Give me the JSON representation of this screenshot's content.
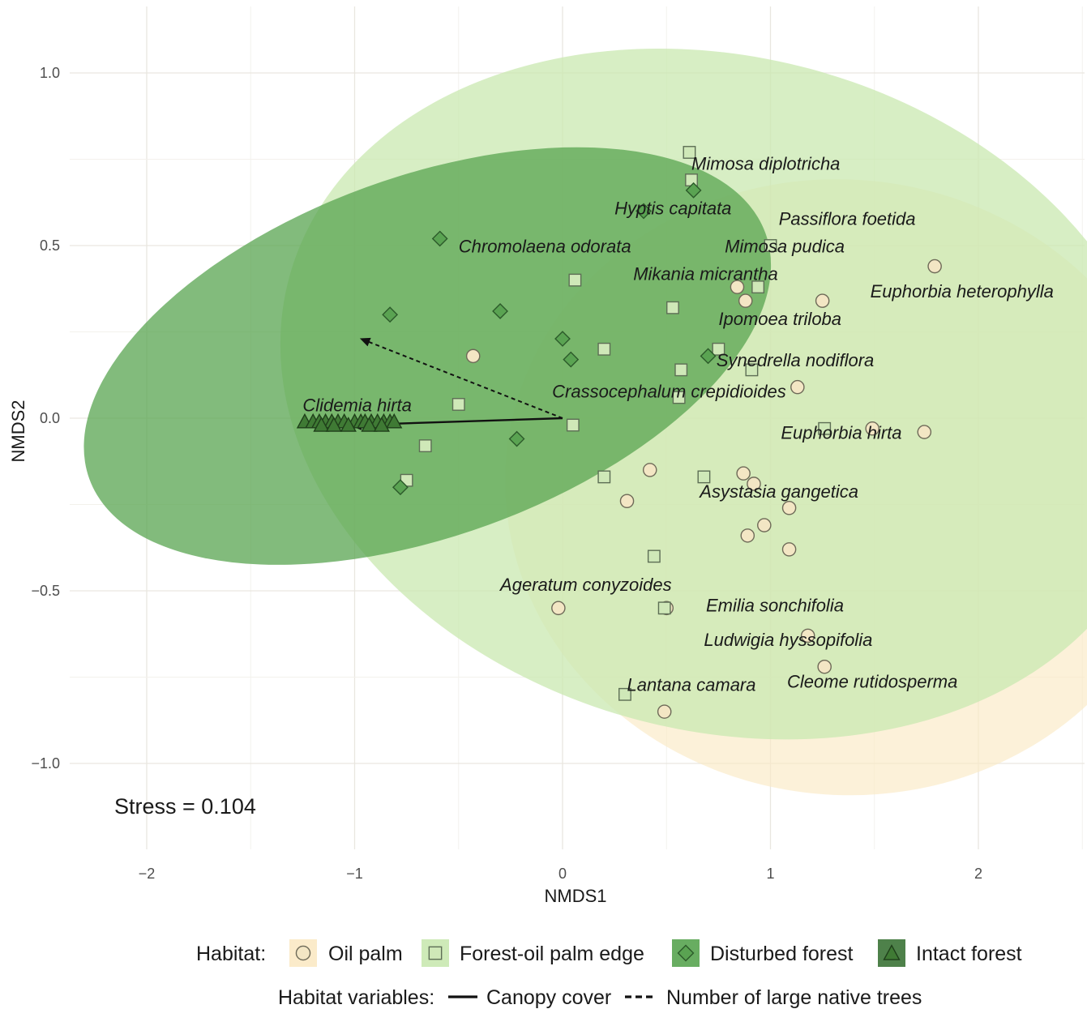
{
  "chart_data": {
    "type": "scatter",
    "title": "",
    "xlabel": "NMDS1",
    "ylabel": "NMDS2",
    "xlim": [
      -2.4,
      2.5
    ],
    "ylim": [
      -1.25,
      1.2
    ],
    "x_ticks": [
      -2,
      -1,
      0,
      1,
      2
    ],
    "x_tick_labels": [
      "−2",
      "−1",
      "0",
      "1",
      "2"
    ],
    "y_ticks": [
      -1.0,
      -0.5,
      0.0,
      0.5,
      1.0
    ],
    "y_tick_labels": [
      "−1.0",
      "−0.5",
      "0.0",
      "0.5",
      "1.0"
    ],
    "grid": true,
    "stress_label": "Stress = 0.104",
    "legend": {
      "position": "bottom",
      "habitat_title": "Habitat:",
      "variables_title": "Habitat variables:"
    },
    "series": [
      {
        "name": "Oil palm",
        "marker": "circle",
        "fill": "#f3e6c4",
        "stroke": "#6e6a58",
        "ellipse_color": "#fbe9c4",
        "ellipse": {
          "cx": 1.35,
          "cy": -0.2,
          "rx": 1.48,
          "ry": 0.98,
          "angle": 84
        },
        "points": [
          [
            1.79,
            0.44
          ],
          [
            1.25,
            0.34
          ],
          [
            0.84,
            0.38
          ],
          [
            0.88,
            0.34
          ],
          [
            -0.43,
            0.18
          ],
          [
            1.13,
            0.09
          ],
          [
            1.49,
            -0.03
          ],
          [
            1.74,
            -0.04
          ],
          [
            0.42,
            -0.15
          ],
          [
            0.87,
            -0.16
          ],
          [
            0.92,
            -0.19
          ],
          [
            0.31,
            -0.24
          ],
          [
            1.09,
            -0.26
          ],
          [
            0.97,
            -0.31
          ],
          [
            0.89,
            -0.34
          ],
          [
            1.09,
            -0.38
          ],
          [
            -0.02,
            -0.55
          ],
          [
            0.5,
            -0.55
          ],
          [
            1.18,
            -0.63
          ],
          [
            1.26,
            -0.72
          ],
          [
            0.49,
            -0.85
          ]
        ]
      },
      {
        "name": "Forest-oil palm edge",
        "marker": "square",
        "fill": "#cfe8b8",
        "stroke": "#5d6e55",
        "ellipse_color": "#c9e8b0",
        "ellipse": {
          "cx": 0.77,
          "cy": 0.07,
          "rx": 1.62,
          "ry": 1.3,
          "angle": 75
        },
        "points": [
          [
            0.61,
            0.77
          ],
          [
            0.62,
            0.69
          ],
          [
            1.0,
            0.5
          ],
          [
            0.06,
            0.4
          ],
          [
            0.94,
            0.38
          ],
          [
            0.53,
            0.32
          ],
          [
            0.2,
            0.2
          ],
          [
            0.75,
            0.2
          ],
          [
            0.57,
            0.14
          ],
          [
            0.91,
            0.14
          ],
          [
            0.56,
            0.06
          ],
          [
            -0.5,
            0.04
          ],
          [
            0.05,
            -0.02
          ],
          [
            1.26,
            -0.03
          ],
          [
            -0.66,
            -0.08
          ],
          [
            0.68,
            -0.17
          ],
          [
            0.2,
            -0.17
          ],
          [
            -0.75,
            -0.18
          ],
          [
            0.44,
            -0.4
          ],
          [
            0.49,
            -0.55
          ],
          [
            0.3,
            -0.8
          ]
        ]
      },
      {
        "name": "Disturbed forest",
        "marker": "diamond",
        "fill": "#5aa352",
        "stroke": "#2c5a2a",
        "ellipse_color": "#58a450",
        "ellipse": {
          "cx": -0.65,
          "cy": 0.18,
          "rx": 1.73,
          "ry": 0.52,
          "angle": 20
        },
        "points": [
          [
            0.39,
            0.6
          ],
          [
            0.63,
            0.66
          ],
          [
            -0.59,
            0.52
          ],
          [
            -0.83,
            0.3
          ],
          [
            -0.3,
            0.31
          ],
          [
            0.0,
            0.23
          ],
          [
            0.04,
            0.17
          ],
          [
            0.7,
            0.18
          ],
          [
            -0.22,
            -0.06
          ],
          [
            -0.78,
            -0.2
          ]
        ]
      },
      {
        "name": "Intact forest",
        "marker": "triangle",
        "fill": "#3f7a34",
        "stroke": "#1f3f1a",
        "points": [
          [
            -1.24,
            -0.01
          ],
          [
            -1.2,
            -0.01
          ],
          [
            -1.17,
            -0.01
          ],
          [
            -1.14,
            -0.01
          ],
          [
            -1.11,
            -0.01
          ],
          [
            -1.08,
            -0.01
          ],
          [
            -1.05,
            -0.01
          ],
          [
            -1.0,
            -0.01
          ],
          [
            -0.97,
            -0.01
          ],
          [
            -0.95,
            -0.01
          ],
          [
            -0.92,
            -0.01
          ],
          [
            -0.89,
            -0.01
          ],
          [
            -0.86,
            -0.01
          ],
          [
            -0.83,
            -0.01
          ],
          [
            -0.81,
            -0.01
          ],
          [
            -1.16,
            -0.02
          ],
          [
            -1.1,
            -0.02
          ],
          [
            -1.03,
            -0.02
          ],
          [
            -0.93,
            -0.02
          ],
          [
            -0.87,
            -0.02
          ]
        ]
      }
    ],
    "vectors": [
      {
        "name": "Canopy cover",
        "style": "solid",
        "from": [
          0,
          0
        ],
        "to": [
          -1.02,
          -0.02
        ]
      },
      {
        "name": "Number of large native trees",
        "style": "dashed",
        "from": [
          0,
          0
        ],
        "to": [
          -0.97,
          0.23
        ]
      }
    ],
    "species_labels": [
      {
        "text": "Mimosa diplotricha",
        "x": 0.62,
        "y": 0.72
      },
      {
        "text": "Hyptis capitata",
        "x": 0.25,
        "y": 0.59
      },
      {
        "text": "Passiflora foetida",
        "x": 1.04,
        "y": 0.56
      },
      {
        "text": "Chromolaena odorata",
        "x": -0.5,
        "y": 0.48
      },
      {
        "text": "Mimosa pudica",
        "x": 0.78,
        "y": 0.48
      },
      {
        "text": "Mikania micrantha",
        "x": 0.34,
        "y": 0.4
      },
      {
        "text": "Euphorbia heterophylla",
        "x": 1.48,
        "y": 0.35
      },
      {
        "text": "Ipomoea triloba",
        "x": 0.75,
        "y": 0.27
      },
      {
        "text": "Synedrella nodiflora",
        "x": 0.74,
        "y": 0.15
      },
      {
        "text": "Crassocephalum crepidioides",
        "x": -0.05,
        "y": 0.06
      },
      {
        "text": "Clidemia hirta",
        "x": -1.25,
        "y": 0.02
      },
      {
        "text": "Euphorbia hirta",
        "x": 1.05,
        "y": -0.06
      },
      {
        "text": "Asystasia gangetica",
        "x": 0.66,
        "y": -0.23
      },
      {
        "text": "Ageratum conyzoides",
        "x": -0.3,
        "y": -0.5
      },
      {
        "text": "Emilia sonchifolia",
        "x": 0.69,
        "y": -0.56
      },
      {
        "text": "Ludwigia hyssopifolia",
        "x": 0.68,
        "y": -0.66
      },
      {
        "text": "Cleome rutidosperma",
        "x": 1.08,
        "y": -0.78
      },
      {
        "text": "Lantana camara",
        "x": 0.31,
        "y": -0.79
      }
    ]
  }
}
